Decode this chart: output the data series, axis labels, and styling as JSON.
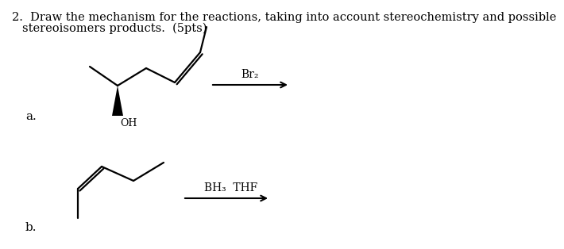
{
  "title_line1": "2.  Draw the mechanism for the reactions, taking into account stereochemistry and possible",
  "title_line2": "stereoisomers products.  (5pts)",
  "label_a": "a.",
  "label_b": "b.",
  "reagent_a": "Br₂",
  "reagent_b": "BH₃  THF",
  "background_color": "#ffffff",
  "text_color": "#000000",
  "bond_color": "#000000",
  "title_fontsize": 10.5,
  "label_fontsize": 11,
  "reagent_fontsize": 10
}
